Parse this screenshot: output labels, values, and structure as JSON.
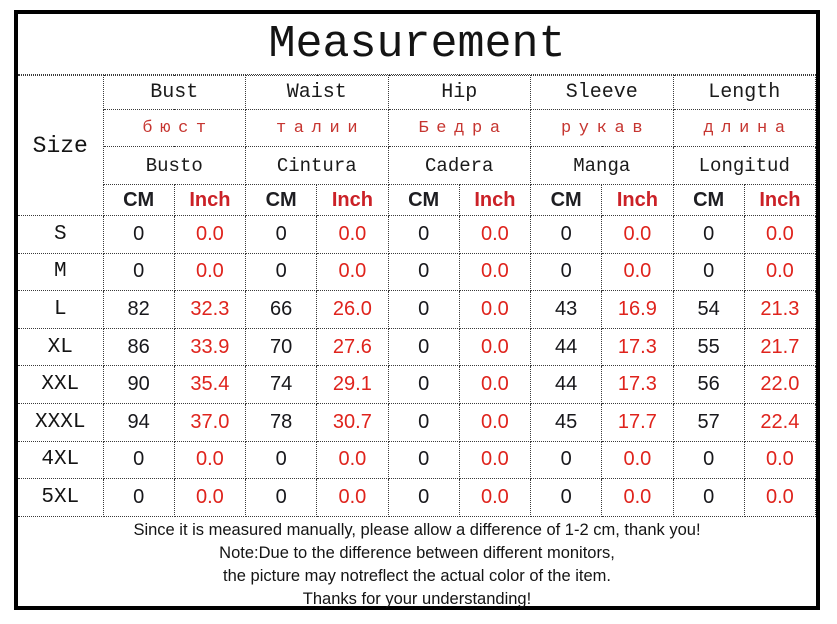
{
  "title": "Measurement",
  "colors": {
    "black_text": "#141414",
    "red_accent": "#cb2127",
    "red_value": "#df231c",
    "russian_red": "#c63530",
    "border_dotted": "#3a3a3a",
    "frame_border": "#000000",
    "background": "#ffffff"
  },
  "table": {
    "size_label": "Size",
    "cm_label": "CM",
    "inch_label": "Inch",
    "groups": [
      {
        "en": "Bust",
        "ru": "бюст",
        "es": "Busto"
      },
      {
        "en": "Waist",
        "ru": "талии",
        "es": "Cintura"
      },
      {
        "en": "Hip",
        "ru": "Бедра",
        "es": "Cadera"
      },
      {
        "en": "Sleeve",
        "ru": "рукав",
        "es": "Manga"
      },
      {
        "en": "Length",
        "ru": "длина",
        "es": "Longitud"
      }
    ],
    "rows": [
      {
        "size": "S",
        "cells": [
          "0",
          "0.0",
          "0",
          "0.0",
          "0",
          "0.0",
          "0",
          "0.0",
          "0",
          "0.0"
        ]
      },
      {
        "size": "M",
        "cells": [
          "0",
          "0.0",
          "0",
          "0.0",
          "0",
          "0.0",
          "0",
          "0.0",
          "0",
          "0.0"
        ]
      },
      {
        "size": "L",
        "cells": [
          "82",
          "32.3",
          "66",
          "26.0",
          "0",
          "0.0",
          "43",
          "16.9",
          "54",
          "21.3"
        ]
      },
      {
        "size": "XL",
        "cells": [
          "86",
          "33.9",
          "70",
          "27.6",
          "0",
          "0.0",
          "44",
          "17.3",
          "55",
          "21.7"
        ]
      },
      {
        "size": "XXL",
        "cells": [
          "90",
          "35.4",
          "74",
          "29.1",
          "0",
          "0.0",
          "44",
          "17.3",
          "56",
          "22.0"
        ]
      },
      {
        "size": "XXXL",
        "cells": [
          "94",
          "37.0",
          "78",
          "30.7",
          "0",
          "0.0",
          "45",
          "17.7",
          "57",
          "22.4"
        ]
      },
      {
        "size": "4XL",
        "cells": [
          "0",
          "0.0",
          "0",
          "0.0",
          "0",
          "0.0",
          "0",
          "0.0",
          "0",
          "0.0"
        ]
      },
      {
        "size": "5XL",
        "cells": [
          "0",
          "0.0",
          "0",
          "0.0",
          "0",
          "0.0",
          "0",
          "0.0",
          "0",
          "0.0"
        ]
      }
    ]
  },
  "footer": {
    "lines": [
      "Since it is measured manually, please allow a difference of 1-2 cm, thank you!",
      "Note:Due to the difference between different monitors,",
      "the picture may notreflect the actual color of the item.",
      "Thanks for your understanding!"
    ]
  },
  "chart_data": {
    "type": "table",
    "title": "Measurement",
    "columns": [
      "Size",
      "Bust CM",
      "Bust Inch",
      "Waist CM",
      "Waist Inch",
      "Hip CM",
      "Hip Inch",
      "Sleeve CM",
      "Sleeve Inch",
      "Length CM",
      "Length Inch"
    ],
    "rows": [
      [
        "S",
        0,
        0.0,
        0,
        0.0,
        0,
        0.0,
        0,
        0.0,
        0,
        0.0
      ],
      [
        "M",
        0,
        0.0,
        0,
        0.0,
        0,
        0.0,
        0,
        0.0,
        0,
        0.0
      ],
      [
        "L",
        82,
        32.3,
        66,
        26.0,
        0,
        0.0,
        43,
        16.9,
        54,
        21.3
      ],
      [
        "XL",
        86,
        33.9,
        70,
        27.6,
        0,
        0.0,
        44,
        17.3,
        55,
        21.7
      ],
      [
        "XXL",
        90,
        35.4,
        74,
        29.1,
        0,
        0.0,
        44,
        17.3,
        56,
        22.0
      ],
      [
        "XXXL",
        94,
        37.0,
        78,
        30.7,
        0,
        0.0,
        45,
        17.7,
        57,
        22.4
      ],
      [
        "4XL",
        0,
        0.0,
        0,
        0.0,
        0,
        0.0,
        0,
        0.0,
        0,
        0.0
      ],
      [
        "5XL",
        0,
        0.0,
        0,
        0.0,
        0,
        0.0,
        0,
        0.0,
        0,
        0.0
      ]
    ],
    "header_translations": {
      "russian": [
        "бюст",
        "талии",
        "Бедра",
        "рукав",
        "длина"
      ],
      "spanish": [
        "Busto",
        "Cintura",
        "Cadera",
        "Manga",
        "Longitud"
      ]
    }
  }
}
